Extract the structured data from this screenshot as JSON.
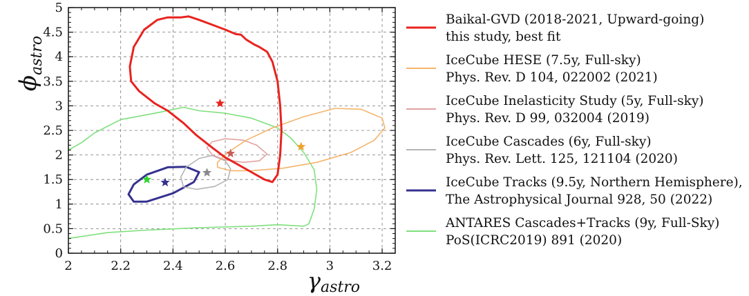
{
  "chart_data": {
    "type": "line",
    "xlabel": {
      "main": "γ",
      "sub": "astro"
    },
    "ylabel": {
      "main": "ϕ",
      "sub": "astro"
    },
    "xlim": [
      2.0,
      3.25
    ],
    "ylim": [
      0,
      5
    ],
    "xticks": [
      "2",
      "2.2",
      "2.4",
      "2.6",
      "2.8",
      "3",
      "3.2"
    ],
    "yticks": [
      "0",
      "0.5",
      "1",
      "1.5",
      "2",
      "2.5",
      "3",
      "3.5",
      "4",
      "4.5",
      "5"
    ],
    "grid": true,
    "legend_position": "right",
    "series": [
      {
        "name": "Baikal-GVD (2018-2021, Upward-going)",
        "name2": "this study, best fit",
        "color": "#e8231e",
        "style": "thick",
        "best_fit": [
          2.58,
          3.05
        ],
        "contour": [
          [
            2.43,
            4.8
          ],
          [
            2.46,
            4.82
          ],
          [
            2.5,
            4.75
          ],
          [
            2.55,
            4.65
          ],
          [
            2.6,
            4.55
          ],
          [
            2.64,
            4.46
          ],
          [
            2.66,
            4.45
          ],
          [
            2.68,
            4.35
          ],
          [
            2.71,
            4.25
          ],
          [
            2.73,
            4.2
          ],
          [
            2.76,
            4.1
          ],
          [
            2.78,
            3.9
          ],
          [
            2.8,
            3.5
          ],
          [
            2.81,
            3.0
          ],
          [
            2.815,
            2.5
          ],
          [
            2.81,
            2.0
          ],
          [
            2.8,
            1.6
          ],
          [
            2.78,
            1.45
          ],
          [
            2.75,
            1.5
          ],
          [
            2.7,
            1.65
          ],
          [
            2.65,
            1.8
          ],
          [
            2.6,
            1.95
          ],
          [
            2.55,
            2.15
          ],
          [
            2.49,
            2.4
          ],
          [
            2.44,
            2.65
          ],
          [
            2.38,
            2.9
          ],
          [
            2.33,
            3.05
          ],
          [
            2.27,
            3.3
          ],
          [
            2.24,
            3.5
          ],
          [
            2.235,
            3.8
          ],
          [
            2.25,
            4.2
          ],
          [
            2.29,
            4.55
          ],
          [
            2.34,
            4.75
          ],
          [
            2.38,
            4.8
          ],
          [
            2.43,
            4.8
          ]
        ]
      },
      {
        "name": "IceCube HESE (7.5y, Full-sky)",
        "name2": "Phys. Rev. D 104, 022002 (2021)",
        "color": "#f4b46a",
        "style": "thin",
        "best_fit": [
          2.89,
          2.17
        ],
        "contour": [
          [
            3.02,
            2.95
          ],
          [
            3.12,
            2.93
          ],
          [
            3.2,
            2.75
          ],
          [
            3.21,
            2.55
          ],
          [
            3.17,
            2.3
          ],
          [
            3.08,
            2.05
          ],
          [
            2.95,
            1.85
          ],
          [
            2.82,
            1.73
          ],
          [
            2.7,
            1.68
          ],
          [
            2.62,
            1.68
          ],
          [
            2.57,
            1.75
          ],
          [
            2.57,
            1.85
          ],
          [
            2.61,
            2.05
          ],
          [
            2.68,
            2.3
          ],
          [
            2.78,
            2.55
          ],
          [
            2.9,
            2.78
          ],
          [
            3.02,
            2.95
          ]
        ]
      },
      {
        "name": "IceCube Inelasticity Study (5y, Full-sky)",
        "name2": "Phys. Rev. D 99, 032004 (2019)",
        "color": "#e0a2a0",
        "style": "thin",
        "best_fit": [
          2.62,
          2.03
        ],
        "contour": [
          [
            2.6,
            2.33
          ],
          [
            2.67,
            2.3
          ],
          [
            2.72,
            2.2
          ],
          [
            2.76,
            2.02
          ],
          [
            2.73,
            1.88
          ],
          [
            2.67,
            1.85
          ],
          [
            2.6,
            1.9
          ],
          [
            2.55,
            2.0
          ],
          [
            2.53,
            2.15
          ],
          [
            2.55,
            2.27
          ],
          [
            2.6,
            2.33
          ]
        ]
      },
      {
        "name": "IceCube Cascades (6y, Full-sky)",
        "name2": "Phys. Rev. Lett. 125, 121104 (2020)",
        "color": "#b4b4b4",
        "style": "thin",
        "best_fit": [
          2.53,
          1.64
        ],
        "contour": [
          [
            2.55,
            1.99
          ],
          [
            2.6,
            1.88
          ],
          [
            2.62,
            1.72
          ],
          [
            2.61,
            1.5
          ],
          [
            2.56,
            1.36
          ],
          [
            2.49,
            1.3
          ],
          [
            2.44,
            1.35
          ],
          [
            2.43,
            1.55
          ],
          [
            2.45,
            1.75
          ],
          [
            2.5,
            1.93
          ],
          [
            2.55,
            1.99
          ]
        ]
      },
      {
        "name": "IceCube Tracks (9.5y, Northern Hemisphere),",
        "name2": "The Astrophysical Journal 928, 50 (2022)",
        "color": "#35318f",
        "style": "thick",
        "best_fit": [
          2.37,
          1.44
        ],
        "contour": [
          [
            2.45,
            1.76
          ],
          [
            2.5,
            1.65
          ],
          [
            2.48,
            1.45
          ],
          [
            2.4,
            1.22
          ],
          [
            2.3,
            1.05
          ],
          [
            2.25,
            1.05
          ],
          [
            2.23,
            1.2
          ],
          [
            2.25,
            1.4
          ],
          [
            2.3,
            1.6
          ],
          [
            2.38,
            1.75
          ],
          [
            2.45,
            1.76
          ]
        ]
      },
      {
        "name": "ANTARES Cascades+Tracks (9y, Full-Sky)",
        "name2": "PoS(ICRC2019) 891 (2020)",
        "color": "#7ee07c",
        "style": "thin",
        "best_fit": [
          2.3,
          1.5
        ],
        "contour": [
          [
            2.0,
            2.1
          ],
          [
            2.05,
            2.25
          ],
          [
            2.1,
            2.45
          ],
          [
            2.2,
            2.72
          ],
          [
            2.35,
            2.87
          ],
          [
            2.44,
            2.97
          ],
          [
            2.5,
            2.9
          ],
          [
            2.6,
            2.85
          ],
          [
            2.7,
            2.75
          ],
          [
            2.8,
            2.55
          ],
          [
            2.85,
            2.35
          ],
          [
            2.9,
            2.05
          ],
          [
            2.94,
            1.7
          ],
          [
            2.95,
            1.3
          ],
          [
            2.94,
            0.9
          ],
          [
            2.92,
            0.6
          ],
          [
            2.9,
            0.55
          ],
          [
            2.8,
            0.58
          ],
          [
            2.7,
            0.55
          ],
          [
            2.5,
            0.52
          ],
          [
            2.3,
            0.47
          ],
          [
            2.15,
            0.42
          ],
          [
            2.0,
            0.3
          ]
        ]
      }
    ]
  }
}
